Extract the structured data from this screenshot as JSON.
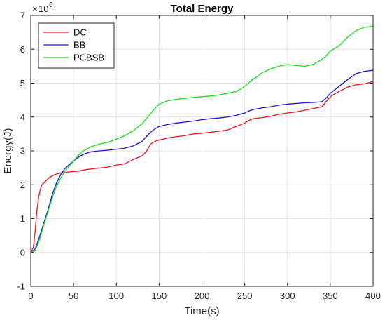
{
  "chart_data": {
    "type": "line",
    "title": "Total Energy",
    "xlabel": "Time(s)",
    "ylabel": "Energy(J)",
    "y_multiplier": {
      "base": "10",
      "exponent": "6"
    },
    "xlim": [
      0,
      400
    ],
    "ylim": [
      -1,
      7
    ],
    "x_ticks": [
      0,
      50,
      100,
      150,
      200,
      250,
      300,
      350,
      400
    ],
    "y_ticks": [
      -1,
      0,
      1,
      2,
      3,
      4,
      5,
      6,
      7
    ],
    "grid": true,
    "legend_position": "top-left",
    "series": [
      {
        "name": "DC",
        "color": "#e8141b",
        "x": [
          0,
          3,
          5,
          7,
          9,
          11,
          13,
          15,
          18,
          22,
          28,
          35,
          45,
          55,
          65,
          75,
          90,
          100,
          110,
          120,
          130,
          135,
          140,
          145,
          150,
          160,
          170,
          180,
          190,
          200,
          210,
          220,
          230,
          240,
          250,
          255,
          260,
          270,
          280,
          290,
          300,
          310,
          320,
          330,
          340,
          345,
          350,
          355,
          360,
          370,
          375,
          380,
          390,
          400
        ],
        "y": [
          0,
          0.15,
          0.6,
          1.2,
          1.6,
          1.85,
          2.0,
          2.05,
          2.12,
          2.22,
          2.3,
          2.35,
          2.38,
          2.4,
          2.45,
          2.48,
          2.52,
          2.58,
          2.62,
          2.75,
          2.85,
          2.98,
          3.2,
          3.28,
          3.32,
          3.38,
          3.42,
          3.45,
          3.5,
          3.52,
          3.55,
          3.58,
          3.62,
          3.72,
          3.82,
          3.9,
          3.95,
          3.98,
          4.02,
          4.08,
          4.12,
          4.15,
          4.2,
          4.25,
          4.3,
          4.45,
          4.6,
          4.68,
          4.75,
          4.88,
          4.92,
          4.95,
          4.98,
          5.05
        ]
      },
      {
        "name": "BB",
        "color": "#1a14e0",
        "x": [
          0,
          5,
          10,
          15,
          20,
          25,
          30,
          35,
          40,
          45,
          50,
          55,
          60,
          65,
          70,
          80,
          90,
          100,
          110,
          120,
          130,
          135,
          140,
          145,
          150,
          160,
          170,
          180,
          190,
          200,
          210,
          220,
          230,
          240,
          250,
          255,
          260,
          270,
          280,
          290,
          300,
          310,
          320,
          330,
          340,
          345,
          350,
          360,
          370,
          380,
          390,
          400
        ],
        "y": [
          0,
          0.1,
          0.45,
          0.85,
          1.25,
          1.7,
          2.05,
          2.3,
          2.48,
          2.6,
          2.7,
          2.8,
          2.88,
          2.93,
          2.97,
          3.0,
          3.02,
          3.05,
          3.08,
          3.15,
          3.28,
          3.42,
          3.55,
          3.65,
          3.72,
          3.78,
          3.82,
          3.85,
          3.88,
          3.92,
          3.95,
          3.97,
          4.0,
          4.05,
          4.12,
          4.18,
          4.22,
          4.27,
          4.3,
          4.35,
          4.38,
          4.4,
          4.42,
          4.43,
          4.45,
          4.55,
          4.7,
          4.9,
          5.1,
          5.28,
          5.35,
          5.38
        ]
      },
      {
        "name": "PCBSB",
        "color": "#14e014",
        "x": [
          0,
          5,
          10,
          15,
          20,
          25,
          30,
          35,
          40,
          45,
          50,
          55,
          60,
          65,
          70,
          80,
          90,
          100,
          110,
          120,
          130,
          135,
          140,
          145,
          150,
          160,
          170,
          180,
          190,
          200,
          210,
          220,
          230,
          240,
          250,
          255,
          260,
          265,
          270,
          280,
          290,
          300,
          310,
          320,
          330,
          340,
          345,
          350,
          360,
          370,
          380,
          390,
          400
        ],
        "y": [
          0,
          0.05,
          0.35,
          0.8,
          1.2,
          1.6,
          1.95,
          2.2,
          2.4,
          2.55,
          2.7,
          2.85,
          2.98,
          3.05,
          3.12,
          3.2,
          3.25,
          3.35,
          3.45,
          3.6,
          3.8,
          3.95,
          4.1,
          4.25,
          4.38,
          4.48,
          4.52,
          4.55,
          4.58,
          4.6,
          4.62,
          4.65,
          4.7,
          4.75,
          4.9,
          5.02,
          5.12,
          5.2,
          5.3,
          5.42,
          5.5,
          5.55,
          5.52,
          5.5,
          5.55,
          5.7,
          5.8,
          5.95,
          6.1,
          6.35,
          6.55,
          6.65,
          6.68
        ]
      }
    ]
  }
}
